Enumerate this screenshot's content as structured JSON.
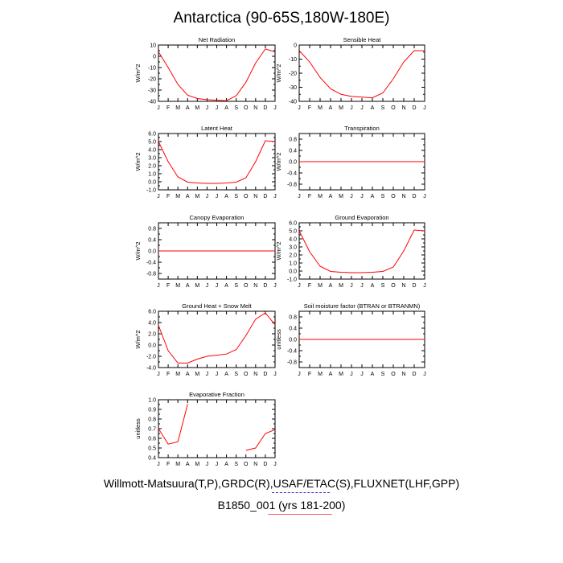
{
  "figure": {
    "title": "Antarctica (90-65S,180W-180E)",
    "footer_line1": "Willmott-Matsuura(T,P),GRDC(R),USAF/ETAC(S),FLUXNET(LHF,GPP)",
    "footer_line2": "B1850_001 (yrs 181-200)",
    "line_color": "#ff0000",
    "underline_blue": "#3333cc",
    "underline_red": "#ff6666"
  },
  "chart_data": [
    {
      "type": "line",
      "title": "Net Radiation",
      "ylabel": "W/m^2",
      "categories": [
        "J",
        "F",
        "M",
        "A",
        "M",
        "J",
        "J",
        "A",
        "S",
        "O",
        "N",
        "D",
        "J"
      ],
      "ylim": [
        -40,
        10
      ],
      "yticks": [
        10,
        0,
        -10,
        -20,
        -30,
        -40
      ],
      "ytick_labels": [
        "10",
        "0",
        "-10",
        "-20",
        "-30",
        "-40"
      ],
      "series": [
        {
          "values": [
            4,
            -10,
            -25,
            -34.5,
            -37.5,
            -38.5,
            -39,
            -39.5,
            -35,
            -23,
            -6,
            6.5,
            4
          ]
        }
      ]
    },
    {
      "type": "line",
      "title": "Sensible Heat",
      "ylabel": "W/m^2",
      "categories": [
        "J",
        "F",
        "M",
        "A",
        "M",
        "J",
        "J",
        "A",
        "S",
        "O",
        "N",
        "D",
        "J"
      ],
      "ylim": [
        -40,
        0
      ],
      "yticks": [
        0,
        -10,
        -20,
        -30,
        -40
      ],
      "ytick_labels": [
        "0",
        "-10",
        "-20",
        "-30",
        "-40"
      ],
      "series": [
        {
          "values": [
            -4,
            -12,
            -23,
            -31,
            -35,
            -36.5,
            -37,
            -37.5,
            -34,
            -24,
            -12,
            -4,
            -4
          ]
        }
      ]
    },
    {
      "type": "line",
      "title": "Latent Heat",
      "ylabel": "W/m^2",
      "categories": [
        "J",
        "F",
        "M",
        "A",
        "M",
        "J",
        "J",
        "A",
        "S",
        "O",
        "N",
        "D",
        "J"
      ],
      "ylim": [
        -1,
        6
      ],
      "yticks": [
        6,
        5,
        4,
        3,
        2,
        1,
        0,
        -1
      ],
      "ytick_labels": [
        "6.0",
        "5.0",
        "4.0",
        "3.0",
        "2.0",
        "1.0",
        "0.0",
        "-1.0"
      ],
      "series": [
        {
          "values": [
            5,
            2.5,
            0.6,
            -0.05,
            -0.15,
            -0.2,
            -0.2,
            -0.15,
            -0.05,
            0.5,
            2.5,
            5.1,
            5
          ]
        }
      ]
    },
    {
      "type": "line",
      "title": "Transpiration",
      "ylabel": "W/m^2",
      "categories": [
        "J",
        "F",
        "M",
        "A",
        "M",
        "J",
        "J",
        "A",
        "S",
        "O",
        "N",
        "D",
        "J"
      ],
      "ylim": [
        -1,
        1
      ],
      "yticks": [
        0.8,
        0.4,
        0,
        -0.4,
        -0.8
      ],
      "ytick_labels": [
        "0.8",
        "0.4",
        "0.0",
        "-0.4",
        "-0.8"
      ],
      "series": [
        {
          "values": [
            0,
            0,
            0,
            0,
            0,
            0,
            0,
            0,
            0,
            0,
            0,
            0,
            0
          ]
        }
      ]
    },
    {
      "type": "line",
      "title": "Canopy Evaporation",
      "ylabel": "W/m^2",
      "categories": [
        "J",
        "F",
        "M",
        "A",
        "M",
        "J",
        "J",
        "A",
        "S",
        "O",
        "N",
        "D",
        "J"
      ],
      "ylim": [
        -1,
        1
      ],
      "yticks": [
        0.8,
        0.4,
        0,
        -0.4,
        -0.8
      ],
      "ytick_labels": [
        "0.8",
        "0.4",
        "0.0",
        "-0.4",
        "-0.8"
      ],
      "series": [
        {
          "values": [
            0,
            0,
            0,
            0,
            0,
            0,
            0,
            0,
            0,
            0,
            0,
            0,
            0
          ]
        }
      ]
    },
    {
      "type": "line",
      "title": "Ground Evaporation",
      "ylabel": "W/m^2",
      "categories": [
        "J",
        "F",
        "M",
        "A",
        "M",
        "J",
        "J",
        "A",
        "S",
        "O",
        "N",
        "D",
        "J"
      ],
      "ylim": [
        -1,
        6
      ],
      "yticks": [
        6,
        5,
        4,
        3,
        2,
        1,
        0,
        -1
      ],
      "ytick_labels": [
        "6.0",
        "5.0",
        "4.0",
        "3.0",
        "2.0",
        "1.0",
        "0.0",
        "-1.0"
      ],
      "series": [
        {
          "values": [
            5,
            2.4,
            0.6,
            -0.05,
            -0.15,
            -0.2,
            -0.2,
            -0.15,
            -0.05,
            0.5,
            2.5,
            5.1,
            5
          ]
        }
      ]
    },
    {
      "type": "line",
      "title": "Ground Heat + Snow Melt",
      "ylabel": "W/m^2",
      "categories": [
        "J",
        "F",
        "M",
        "A",
        "M",
        "J",
        "J",
        "A",
        "S",
        "O",
        "N",
        "D",
        "J"
      ],
      "ylim": [
        -4,
        6
      ],
      "yticks": [
        6,
        4,
        2,
        0,
        -2,
        -4
      ],
      "ytick_labels": [
        "6.0",
        "4.0",
        "2.0",
        "0.0",
        "-2.0",
        "-4.0"
      ],
      "series": [
        {
          "values": [
            3.5,
            -1,
            -3.2,
            -3.2,
            -2.5,
            -2,
            -1.8,
            -1.6,
            -0.8,
            1.7,
            4.6,
            5.7,
            3.6
          ]
        }
      ]
    },
    {
      "type": "line",
      "title": "Soil moisture factor (BTRAN or BTRANMN)",
      "ylabel": "unitless",
      "categories": [
        "J",
        "F",
        "M",
        "A",
        "M",
        "J",
        "J",
        "A",
        "S",
        "O",
        "N",
        "D",
        "J"
      ],
      "ylim": [
        -1,
        1
      ],
      "yticks": [
        0.8,
        0.4,
        0,
        -0.4,
        -0.8
      ],
      "ytick_labels": [
        "0.8",
        "0.4",
        "0.0",
        "-0.4",
        "-0.8"
      ],
      "series": [
        {
          "values": [
            0,
            0,
            0,
            0,
            0,
            0,
            0,
            0,
            0,
            0,
            0,
            0,
            0
          ]
        }
      ]
    },
    {
      "type": "line",
      "title": "Evaporative Fraction",
      "ylabel": "unitless",
      "categories": [
        "J",
        "F",
        "M",
        "A",
        "M",
        "J",
        "J",
        "A",
        "S",
        "O",
        "N",
        "D",
        "J"
      ],
      "ylim": [
        0.4,
        1.0
      ],
      "yticks": [
        1.0,
        0.9,
        0.8,
        0.7,
        0.6,
        0.5,
        0.4
      ],
      "ytick_labels": [
        "1.0",
        "0.9",
        "0.8",
        "0.7",
        "0.6",
        "0.5",
        "0.4"
      ],
      "series": [
        {
          "values": [
            0.7,
            0.54,
            0.565,
            0.955,
            null,
            null,
            null,
            null,
            null,
            0.475,
            0.5,
            0.65,
            0.69
          ]
        }
      ]
    }
  ]
}
